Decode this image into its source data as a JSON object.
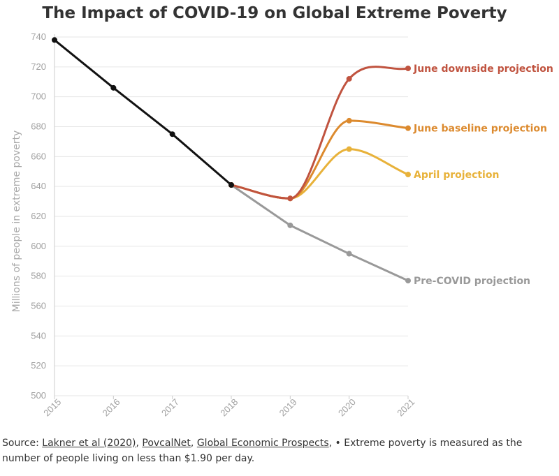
{
  "chart_data": {
    "type": "line",
    "title": "The Impact of COVID-19 on Global Extreme Poverty",
    "ylabel": "Millions of people in extreme poverty",
    "xlabel": "",
    "x": [
      "2015",
      "2016",
      "2017",
      "2018",
      "2019",
      "2020",
      "2021"
    ],
    "ylim": [
      500,
      740
    ],
    "yticks": [
      500,
      520,
      540,
      560,
      580,
      600,
      620,
      640,
      660,
      680,
      700,
      720,
      740
    ],
    "grid": true,
    "series": [
      {
        "name": "",
        "color": "#111111",
        "points": [
          {
            "x": "2015",
            "y": 738
          },
          {
            "x": "2016",
            "y": 706
          },
          {
            "x": "2017",
            "y": 675
          },
          {
            "x": "2018",
            "y": 641
          }
        ]
      },
      {
        "name": "Pre-COVID projection",
        "color": "#999999",
        "points": [
          {
            "x": "2018",
            "y": 641
          },
          {
            "x": "2019",
            "y": 614
          },
          {
            "x": "2020",
            "y": 595
          },
          {
            "x": "2021",
            "y": 577
          }
        ]
      },
      {
        "name": "June downside projection",
        "color": "#c0533f",
        "points": [
          {
            "x": "2018",
            "y": 641
          },
          {
            "x": "2019",
            "y": 632
          },
          {
            "x": "2020",
            "y": 712
          },
          {
            "x": "2021",
            "y": 719
          }
        ]
      },
      {
        "name": "June baseline projection",
        "color": "#dc8a2e",
        "points": [
          {
            "x": "2018",
            "y": 641
          },
          {
            "x": "2019",
            "y": 632
          },
          {
            "x": "2020",
            "y": 684
          },
          {
            "x": "2021",
            "y": 679
          }
        ]
      },
      {
        "name": "April projection",
        "color": "#e8b23a",
        "points": [
          {
            "x": "2018",
            "y": 641
          },
          {
            "x": "2019",
            "y": 632
          },
          {
            "x": "2020",
            "y": 665
          },
          {
            "x": "2021",
            "y": 648
          }
        ]
      }
    ]
  },
  "source": {
    "prefix": "Source: ",
    "links": [
      "Lakner et al (2020)",
      "PovcalNet",
      "Global Economic Prospects"
    ],
    "sep": ", ",
    "note": ", • Extreme poverty is measured as the number of people living on less than $1.90 per day."
  }
}
